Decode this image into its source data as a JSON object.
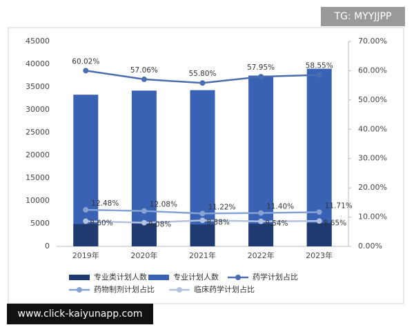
{
  "chart_data": {
    "type": "bar",
    "categories": [
      "2019年",
      "2020年",
      "2021年",
      "2022年",
      "2023年"
    ],
    "series": [
      {
        "name": "专业计划人数",
        "type": "bar",
        "color": "#3a62b4",
        "values": [
          33300,
          34200,
          34300,
          37500,
          39000
        ]
      },
      {
        "name": "专业类计划人数",
        "type": "bar",
        "color": "#1f3a70",
        "values": [
          4900,
          5000,
          4800,
          4950,
          5100
        ]
      },
      {
        "name": "药学计划占比",
        "type": "line",
        "axis": "y2",
        "color": "#4a6db0",
        "values": [
          60.02,
          57.06,
          55.8,
          57.95,
          58.55
        ],
        "value_labels": [
          "60.02%",
          "57.06%",
          "55.80%",
          "57.95%",
          "58.55%"
        ]
      },
      {
        "name": "药物制剂计划占比",
        "type": "line",
        "axis": "y2",
        "color": "#86a3d4",
        "values": [
          12.48,
          12.08,
          11.22,
          11.4,
          11.71
        ],
        "value_labels": [
          "12.48%",
          "12.08%",
          "11.22%",
          "11.40%",
          "11.71%"
        ]
      },
      {
        "name": "临床药学计划占比",
        "type": "line",
        "axis": "y2",
        "color": "#b3c2df",
        "values": [
          8.6,
          8.08,
          8.88,
          8.54,
          8.65
        ],
        "value_labels": [
          "8.60%",
          "8.08%",
          "8.88%",
          "8.54%",
          "8.65%"
        ]
      }
    ],
    "ylim": [
      0,
      45000
    ],
    "yticks": [
      0,
      5000,
      10000,
      15000,
      20000,
      25000,
      30000,
      35000,
      40000,
      45000
    ],
    "y2lim": [
      0,
      70
    ],
    "y2ticks": [
      {
        "value": 0,
        "label": "0.00%"
      },
      {
        "value": 10,
        "label": "10.00%"
      },
      {
        "value": 20,
        "label": "20.00%"
      },
      {
        "value": 30,
        "label": "30.00%"
      },
      {
        "value": 40,
        "label": "40.00%"
      },
      {
        "value": 50,
        "label": "50.00%"
      },
      {
        "value": 60,
        "label": "60.00%"
      },
      {
        "value": 70,
        "label": "70.00%"
      }
    ],
    "legend_order": [
      1,
      0,
      2,
      3,
      4
    ]
  },
  "watermarks": {
    "top_right": "TG: MYYJJPP",
    "bottom_left": "www.click-kaiyunapp.com"
  }
}
